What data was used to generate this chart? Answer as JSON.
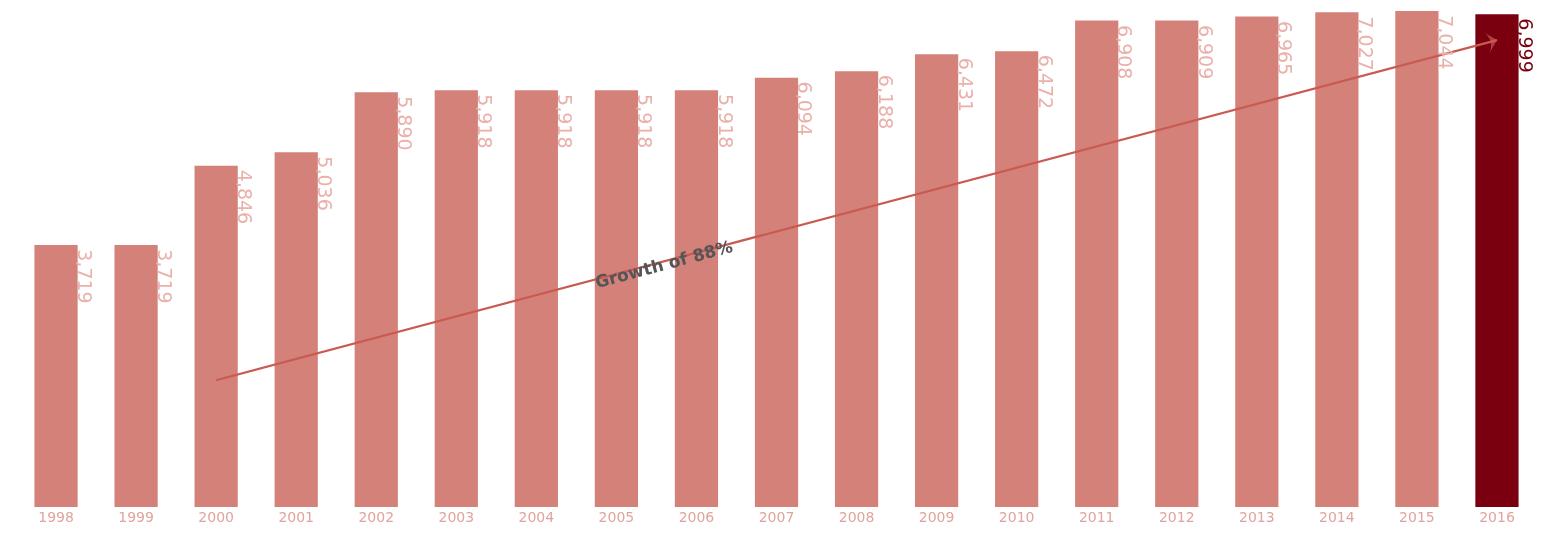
{
  "chart_data": {
    "type": "bar",
    "categories": [
      "1998",
      "1999",
      "2000",
      "2001",
      "2002",
      "2003",
      "2004",
      "2005",
      "2006",
      "2007",
      "2008",
      "2009",
      "2010",
      "2011",
      "2012",
      "2013",
      "2014",
      "2015",
      "2016"
    ],
    "series": [
      {
        "values": [
          3719,
          3719,
          4846,
          5036,
          5890,
          5918,
          5918,
          5918,
          5918,
          6094,
          6188,
          6431,
          6472,
          6908,
          6909,
          6965,
          7027,
          7044,
          6999
        ],
        "colors": [
          "#d4817a",
          "#d4817a",
          "#d4817a",
          "#d4817a",
          "#d4817a",
          "#d4817a",
          "#d4817a",
          "#d4817a",
          "#d4817a",
          "#d4817a",
          "#d4817a",
          "#d4817a",
          "#d4817a",
          "#d4817a",
          "#d4817a",
          "#d4817a",
          "#d4817a",
          "#d4817a",
          "#7a0010"
        ],
        "value_labels": [
          "3,719",
          "3,719",
          "4,846",
          "5,036",
          "5,890",
          "5,918",
          "5,918",
          "5,918",
          "5,918",
          "6,094",
          "6,188",
          "6,431",
          "6,472",
          "6,908",
          "6,909",
          "6,965",
          "7,027",
          "7,044",
          "6,999"
        ]
      },
      {
        "type": "line",
        "color": "#c85a52",
        "values": [
          null,
          null,
          1800,
          null,
          null,
          null,
          null,
          null,
          null,
          null,
          null,
          null,
          null,
          null,
          null,
          null,
          null,
          null,
          6630
        ]
      }
    ],
    "annotations": [
      "Growth of 88%"
    ]
  }
}
